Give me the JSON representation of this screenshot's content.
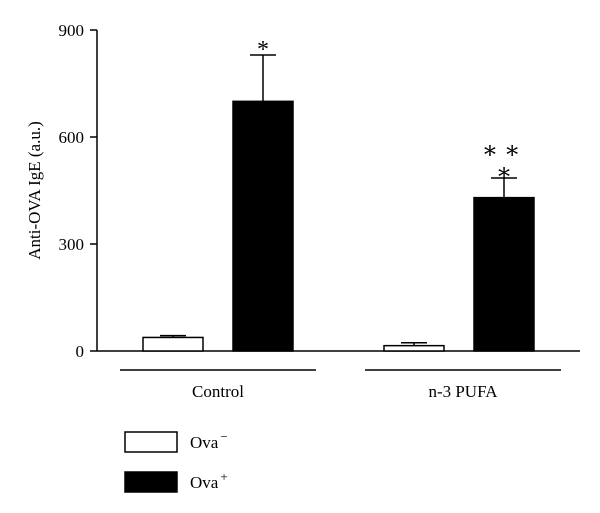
{
  "chart_data": {
    "type": "bar",
    "ylabel": "Anti-OVA IgE (a.u.)",
    "ylim": [
      0,
      900
    ],
    "yticks": [
      0,
      300,
      600,
      900
    ],
    "ytick_labels": [
      "0",
      "300",
      "600",
      "900"
    ],
    "grid": false,
    "groups": [
      "Control",
      "n-3 PUFA"
    ],
    "series": [
      {
        "name": "Ova",
        "superscript": "−",
        "color": "#ffffff",
        "values": [
          38,
          15
        ],
        "errors": [
          5,
          8
        ]
      },
      {
        "name": "Ova",
        "superscript": "+",
        "color": "#000000",
        "values": [
          700,
          430
        ],
        "errors": [
          130,
          55
        ]
      }
    ],
    "annotations": [
      {
        "group": 0,
        "series": 1,
        "text": "*"
      },
      {
        "group": 1,
        "series": 1,
        "text": "∗∗"
      },
      {
        "group": 1,
        "series": 1,
        "text": "∗"
      }
    ],
    "legend_placement": "bottom-left"
  }
}
